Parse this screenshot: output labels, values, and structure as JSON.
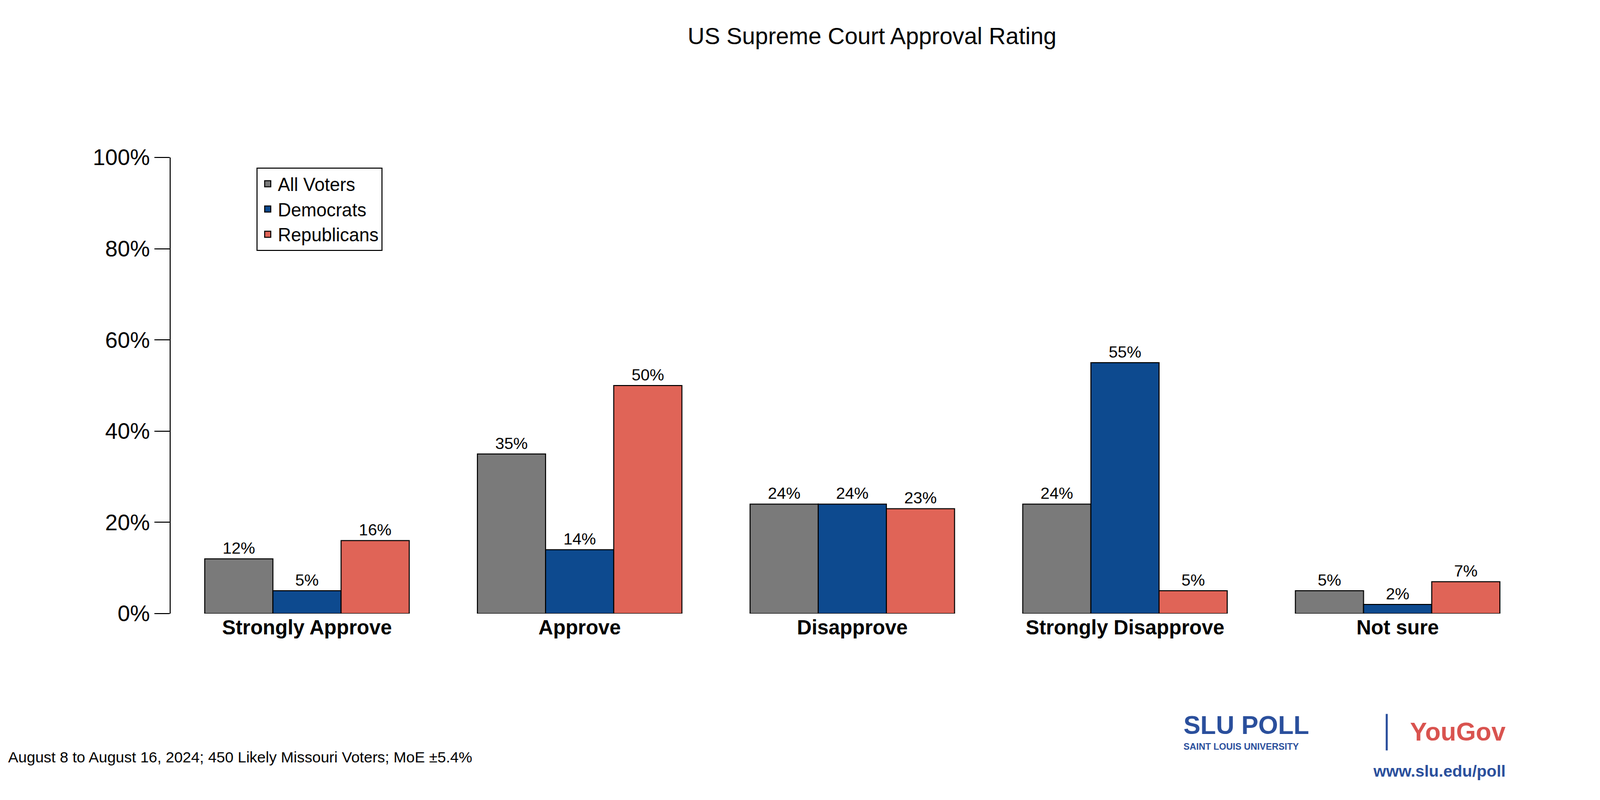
{
  "chart_data": {
    "type": "bar",
    "title": "US Supreme Court Approval Rating",
    "categories": [
      "Strongly Approve",
      "Approve",
      "Disapprove",
      "Strongly Disapprove",
      "Not sure"
    ],
    "series": [
      {
        "name": "All Voters",
        "color": "#7a7a7a",
        "values": [
          12,
          35,
          24,
          24,
          5
        ],
        "value_labels": [
          "12%",
          "35%",
          "24%",
          "24%",
          "5%"
        ]
      },
      {
        "name": "Democrats",
        "color": "#0d4a8f",
        "values": [
          5,
          14,
          24,
          55,
          2
        ],
        "value_labels": [
          "5%",
          "14%",
          "24%",
          "55%",
          "2%"
        ]
      },
      {
        "name": "Republicans",
        "color": "#e06457",
        "values": [
          16,
          50,
          23,
          5,
          7
        ],
        "value_labels": [
          "16%",
          "50%",
          "23%",
          "5%",
          "7%"
        ]
      }
    ],
    "ylim": [
      0,
      100
    ],
    "yticks": [
      {
        "value": 0,
        "label": "0%"
      },
      {
        "value": 20,
        "label": "20%"
      },
      {
        "value": 40,
        "label": "40%"
      },
      {
        "value": 60,
        "label": "60%"
      },
      {
        "value": 80,
        "label": "80%"
      },
      {
        "value": 100,
        "label": "100%"
      }
    ],
    "grid": false,
    "legend": "upper left",
    "data_labels": true,
    "annotations": [
      "August 8 to August 16, 2024; 450 Likely Missouri Voters; MoE ±5.4%",
      "SLU POLL",
      "SAINT LOUIS UNIVERSITY",
      "YouGov",
      "www.slu.edu/poll"
    ]
  }
}
